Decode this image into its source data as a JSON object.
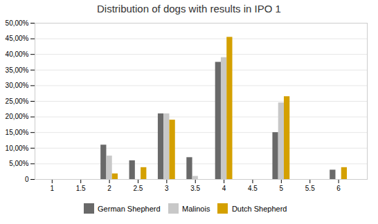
{
  "chart_data": {
    "type": "bar",
    "title": "Distribution of dogs with results in IPO 1",
    "x": [
      2,
      2.5,
      3,
      3.5,
      4,
      5,
      6
    ],
    "series": [
      {
        "name": "German Shepherd",
        "color": "#696969",
        "values": [
          0.11,
          0.06,
          0.21,
          0.07,
          0.375,
          0.15,
          0.03
        ]
      },
      {
        "name": "Malinois",
        "color": "#c8c8c8",
        "values": [
          0.075,
          0.0,
          0.21,
          0.01,
          0.39,
          0.245,
          0.0
        ]
      },
      {
        "name": "Dutch Shepherd",
        "color": "#d4a000",
        "values": [
          0.018,
          0.038,
          0.19,
          0.0,
          0.455,
          0.265,
          0.038
        ]
      }
    ],
    "xlim": [
      0.7,
      6.5
    ],
    "xticks": [
      1,
      1.5,
      2,
      2.5,
      3,
      3.5,
      4,
      4.5,
      5,
      5.5,
      6
    ],
    "ylim": [
      0,
      0.5
    ],
    "yticks": [
      0,
      {
        "value": 0.05,
        "label": "5,00%"
      },
      {
        "value": 0.1,
        "label": "10,00%"
      },
      {
        "value": 0.15,
        "label": "15,00%"
      },
      {
        "value": 0.2,
        "label": "20,00%"
      },
      {
        "value": 0.25,
        "label": "25,00%"
      },
      {
        "value": 0.3,
        "label": "30,00%"
      },
      {
        "value": 0.35,
        "label": "35,00%"
      },
      {
        "value": 0.4,
        "label": "40,00%"
      },
      {
        "value": 0.45,
        "label": "45,00%"
      },
      {
        "value": 0.5,
        "label": "50,00%"
      }
    ],
    "grid": true,
    "legend": "bottom"
  }
}
